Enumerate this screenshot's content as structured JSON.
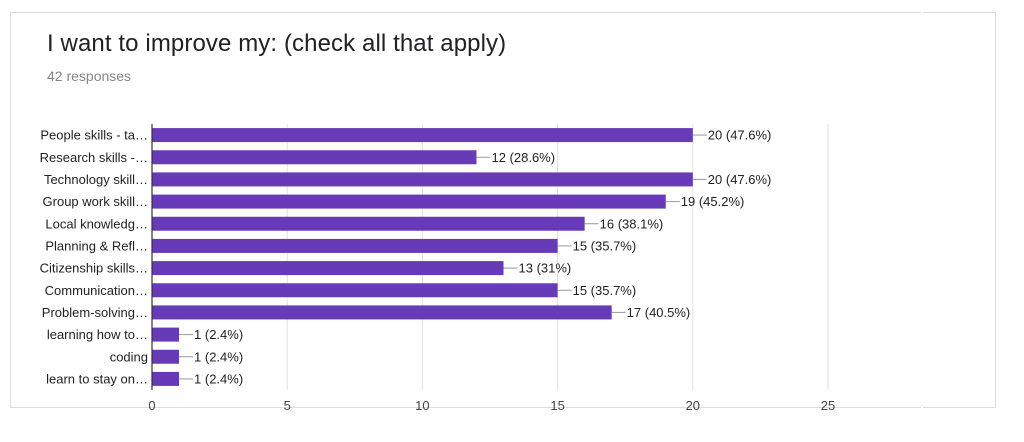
{
  "form": {
    "question": "I want to improve my:  (check all that apply)",
    "responses": "42 responses"
  },
  "colors": {
    "bar": "#673ab7",
    "grid": "#e0e0e0",
    "axis": "#333333",
    "leader": "#999999"
  },
  "chart_data": {
    "type": "bar",
    "orientation": "horizontal",
    "title": "I want to improve my:  (check all that apply)",
    "categories": [
      "People skills - ta…",
      "Research skills -…",
      "Technology skill…",
      "Group work skill…",
      "Local knowledg…",
      "Planning & Refl…",
      "Citizenship skills…",
      "Communication…",
      "Problem-solving…",
      "learning how to…",
      "coding",
      "learn to stay on…"
    ],
    "values": [
      20,
      12,
      20,
      19,
      16,
      15,
      13,
      15,
      17,
      1,
      1,
      1
    ],
    "data_labels": [
      "20 (47.6%)",
      "12 (28.6%)",
      "20 (47.6%)",
      "19 (45.2%)",
      "16 (38.1%)",
      "15 (35.7%)",
      "13 (31%)",
      "15 (35.7%)",
      "17 (40.5%)",
      "1 (2.4%)",
      "1 (2.4%)",
      "1 (2.4%)"
    ],
    "xlim": [
      0,
      25
    ],
    "xticks": [
      0,
      5,
      10,
      15,
      20,
      25
    ],
    "grid": true,
    "legend": "none"
  }
}
